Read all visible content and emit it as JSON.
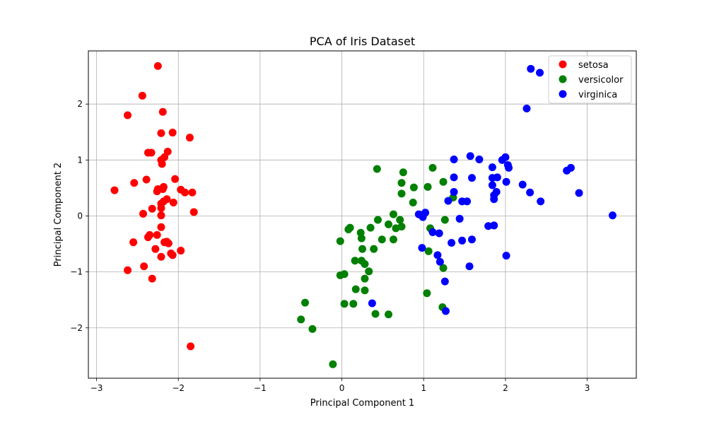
{
  "chart_data": {
    "type": "scatter",
    "title": "PCA of Iris Dataset",
    "xlabel": "Principal Component 1",
    "ylabel": "Principal Component 2",
    "xlim": [
      -3.1,
      3.6
    ],
    "ylim": [
      -2.9,
      2.95
    ],
    "xticks": [
      -3,
      -2,
      -1,
      0,
      1,
      2,
      3
    ],
    "xtick_labels": [
      "−3",
      "−2",
      "−1",
      "0",
      "1",
      "2",
      "3"
    ],
    "yticks": [
      -2,
      -1,
      0,
      1,
      2
    ],
    "ytick_labels": [
      "−2",
      "−1",
      "0",
      "1",
      "2"
    ],
    "grid": true,
    "legend_position": "top-right",
    "series": [
      {
        "name": "setosa",
        "color": "#ff0000",
        "points": [
          [
            -2.25,
            2.68
          ],
          [
            -2.44,
            2.15
          ],
          [
            -2.62,
            1.8
          ],
          [
            -2.19,
            1.86
          ],
          [
            -2.07,
            1.49
          ],
          [
            -2.21,
            1.48
          ],
          [
            -1.86,
            1.4
          ],
          [
            -2.37,
            1.13
          ],
          [
            -2.33,
            1.13
          ],
          [
            -2.13,
            1.15
          ],
          [
            -2.17,
            1.05
          ],
          [
            -2.21,
            1.0
          ],
          [
            -2.2,
            0.93
          ],
          [
            -2.39,
            0.65
          ],
          [
            -2.04,
            0.66
          ],
          [
            -2.54,
            0.59
          ],
          [
            -2.25,
            0.48
          ],
          [
            -2.26,
            0.44
          ],
          [
            -2.18,
            0.52
          ],
          [
            -2.19,
            0.48
          ],
          [
            -1.97,
            0.47
          ],
          [
            -1.92,
            0.42
          ],
          [
            -1.83,
            0.42
          ],
          [
            -2.78,
            0.46
          ],
          [
            -2.14,
            0.3
          ],
          [
            -2.18,
            0.26
          ],
          [
            -2.06,
            0.24
          ],
          [
            -2.21,
            0.22
          ],
          [
            -2.21,
            0.14
          ],
          [
            -2.32,
            0.13
          ],
          [
            -1.81,
            0.07
          ],
          [
            -2.43,
            0.04
          ],
          [
            -2.21,
            0.01
          ],
          [
            -2.21,
            -0.2
          ],
          [
            -2.35,
            -0.34
          ],
          [
            -2.26,
            -0.34
          ],
          [
            -2.37,
            -0.38
          ],
          [
            -2.14,
            -0.46
          ],
          [
            -2.17,
            -0.47
          ],
          [
            -2.12,
            -0.49
          ],
          [
            -2.55,
            -0.47
          ],
          [
            -2.28,
            -0.59
          ],
          [
            -1.97,
            -0.62
          ],
          [
            -2.09,
            -0.67
          ],
          [
            -2.07,
            -0.7
          ],
          [
            -2.21,
            -0.73
          ],
          [
            -2.42,
            -0.9
          ],
          [
            -2.62,
            -0.97
          ],
          [
            -2.32,
            -1.12
          ],
          [
            -1.85,
            -2.33
          ]
        ]
      },
      {
        "name": "versicolor",
        "color": "#008000",
        "points": [
          [
            0.43,
            0.84
          ],
          [
            0.75,
            0.78
          ],
          [
            1.11,
            0.86
          ],
          [
            0.73,
            0.59
          ],
          [
            0.88,
            0.51
          ],
          [
            1.05,
            0.52
          ],
          [
            1.24,
            0.61
          ],
          [
            0.73,
            0.4
          ],
          [
            1.36,
            0.33
          ],
          [
            0.87,
            0.24
          ],
          [
            0.63,
            0.03
          ],
          [
            0.44,
            -0.07
          ],
          [
            0.71,
            -0.07
          ],
          [
            1.26,
            -0.07
          ],
          [
            0.57,
            -0.15
          ],
          [
            0.66,
            -0.22
          ],
          [
            0.73,
            -0.19
          ],
          [
            0.1,
            -0.21
          ],
          [
            0.08,
            -0.24
          ],
          [
            1.08,
            -0.22
          ],
          [
            0.35,
            -0.21
          ],
          [
            0.23,
            -0.3
          ],
          [
            0.24,
            -0.4
          ],
          [
            -0.02,
            -0.45
          ],
          [
            0.49,
            -0.42
          ],
          [
            0.63,
            -0.42
          ],
          [
            0.25,
            -0.59
          ],
          [
            0.39,
            -0.59
          ],
          [
            1.06,
            -0.63
          ],
          [
            0.16,
            -0.8
          ],
          [
            0.24,
            -0.8
          ],
          [
            0.28,
            -0.86
          ],
          [
            1.24,
            -0.93
          ],
          [
            0.33,
            -0.99
          ],
          [
            -0.02,
            -1.06
          ],
          [
            0.03,
            -1.04
          ],
          [
            0.28,
            -1.12
          ],
          [
            0.17,
            -1.31
          ],
          [
            0.28,
            -1.33
          ],
          [
            1.04,
            -1.38
          ],
          [
            -0.45,
            -1.55
          ],
          [
            0.03,
            -1.57
          ],
          [
            0.14,
            -1.57
          ],
          [
            1.23,
            -1.63
          ],
          [
            0.41,
            -1.75
          ],
          [
            0.57,
            -1.76
          ],
          [
            -0.5,
            -1.85
          ],
          [
            -0.36,
            -2.02
          ],
          [
            -0.11,
            -2.65
          ],
          [
            0.96,
            0.02
          ]
        ]
      },
      {
        "name": "virginica",
        "color": "#0000ff",
        "points": [
          [
            2.31,
            2.63
          ],
          [
            2.42,
            2.56
          ],
          [
            2.26,
            1.92
          ],
          [
            1.57,
            1.07
          ],
          [
            1.37,
            1.01
          ],
          [
            1.68,
            1.01
          ],
          [
            1.96,
            1.0
          ],
          [
            2.0,
            1.05
          ],
          [
            2.03,
            0.91
          ],
          [
            1.84,
            0.87
          ],
          [
            2.04,
            0.86
          ],
          [
            2.8,
            0.86
          ],
          [
            2.75,
            0.81
          ],
          [
            1.37,
            0.69
          ],
          [
            1.59,
            0.68
          ],
          [
            1.84,
            0.68
          ],
          [
            1.9,
            0.69
          ],
          [
            2.01,
            0.61
          ],
          [
            2.21,
            0.56
          ],
          [
            1.84,
            0.55
          ],
          [
            1.37,
            0.43
          ],
          [
            1.89,
            0.43
          ],
          [
            2.3,
            0.42
          ],
          [
            2.9,
            0.41
          ],
          [
            1.86,
            0.37
          ],
          [
            1.86,
            0.3
          ],
          [
            1.47,
            0.26
          ],
          [
            1.53,
            0.26
          ],
          [
            2.43,
            0.26
          ],
          [
            3.31,
            0.01
          ],
          [
            0.94,
            0.03
          ],
          [
            1.02,
            0.06
          ],
          [
            0.99,
            -0.02
          ],
          [
            1.44,
            -0.05
          ],
          [
            1.79,
            -0.18
          ],
          [
            1.86,
            -0.17
          ],
          [
            1.11,
            -0.29
          ],
          [
            1.19,
            -0.31
          ],
          [
            1.47,
            -0.44
          ],
          [
            1.59,
            -0.42
          ],
          [
            1.34,
            -0.48
          ],
          [
            0.98,
            -0.57
          ],
          [
            1.17,
            -0.7
          ],
          [
            2.01,
            -0.71
          ],
          [
            1.2,
            -0.82
          ],
          [
            1.56,
            -0.9
          ],
          [
            1.26,
            -1.17
          ],
          [
            0.37,
            -1.56
          ],
          [
            1.27,
            -1.7
          ],
          [
            1.3,
            0.27
          ]
        ]
      }
    ]
  }
}
